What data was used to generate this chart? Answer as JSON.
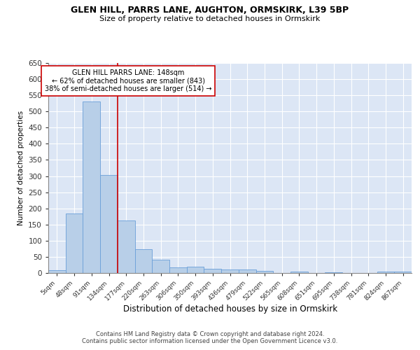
{
  "title1": "GLEN HILL, PARRS LANE, AUGHTON, ORMSKIRK, L39 5BP",
  "title2": "Size of property relative to detached houses in Ormskirk",
  "xlabel": "Distribution of detached houses by size in Ormskirk",
  "ylabel": "Number of detached properties",
  "categories": [
    "5sqm",
    "48sqm",
    "91sqm",
    "134sqm",
    "177sqm",
    "220sqm",
    "263sqm",
    "306sqm",
    "350sqm",
    "393sqm",
    "436sqm",
    "479sqm",
    "522sqm",
    "565sqm",
    "608sqm",
    "651sqm",
    "695sqm",
    "738sqm",
    "781sqm",
    "824sqm",
    "867sqm"
  ],
  "values": [
    8,
    185,
    530,
    303,
    163,
    73,
    42,
    17,
    20,
    12,
    10,
    10,
    7,
    0,
    5,
    0,
    3,
    0,
    0,
    5,
    4
  ],
  "bar_color": "#b8cfe8",
  "bar_edge_color": "#6a9fd8",
  "bg_color": "#dce6f5",
  "grid_color": "#ffffff",
  "vline_color": "#cc0000",
  "annotation_text": "GLEN HILL PARRS LANE: 148sqm\n← 62% of detached houses are smaller (843)\n38% of semi-detached houses are larger (514) →",
  "annotation_box_color": "#ffffff",
  "annotation_box_edge": "#cc0000",
  "footer1": "Contains HM Land Registry data © Crown copyright and database right 2024.",
  "footer2": "Contains public sector information licensed under the Open Government Licence v3.0.",
  "ylim": [
    0,
    650
  ],
  "yticks": [
    0,
    50,
    100,
    150,
    200,
    250,
    300,
    350,
    400,
    450,
    500,
    550,
    600,
    650
  ]
}
